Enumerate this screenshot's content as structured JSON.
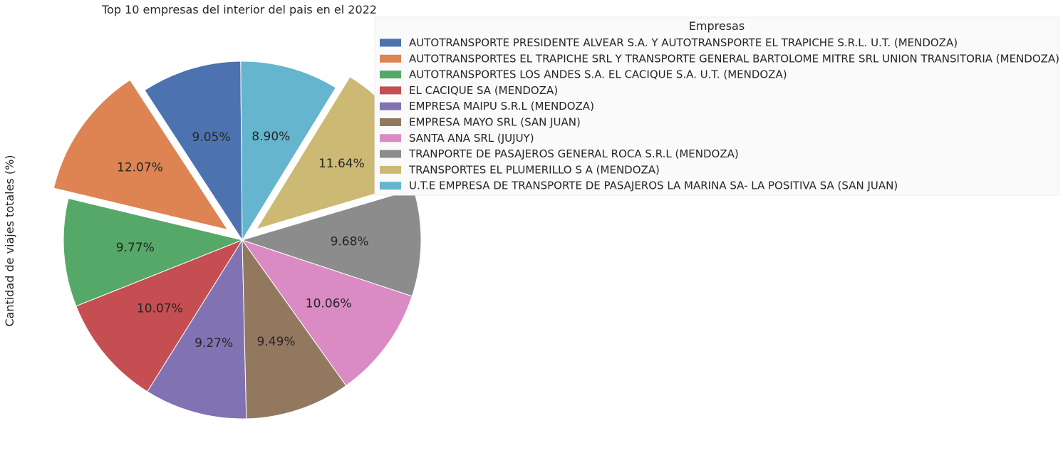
{
  "chart_data": {
    "type": "pie",
    "title": "Top 10 empresas del interior del pais en el 2022",
    "ylabel": "Cantidad de viajes totales (%)",
    "legend": {
      "title": "Empresas",
      "placement": "top-right"
    },
    "slices": [
      {
        "label": "AUTOTRANSPORTE PRESIDENTE ALVEAR S.A. Y AUTOTRANSPORTE EL TRAPICHE S.R.L. U.T. (MENDOZA)",
        "value": 9.05,
        "text": "9.05%",
        "color": "#4c72b0",
        "exploded": false
      },
      {
        "label": "AUTOTRANSPORTES EL TRAPICHE SRL Y TRANSPORTE GENERAL BARTOLOME MITRE SRL UNION TRANSITORIA (MENDOZA)",
        "value": 12.07,
        "text": "12.07%",
        "color": "#dd8452",
        "exploded": true
      },
      {
        "label": "AUTOTRANSPORTES LOS ANDES S.A. EL CACIQUE S.A. U.T. (MENDOZA)",
        "value": 9.77,
        "text": "9.77%",
        "color": "#55a868",
        "exploded": false
      },
      {
        "label": "EL CACIQUE SA (MENDOZA)",
        "value": 10.07,
        "text": "10.07%",
        "color": "#c44e52",
        "exploded": false
      },
      {
        "label": "EMPRESA MAIPU S.R.L (MENDOZA)",
        "value": 9.27,
        "text": "9.27%",
        "color": "#8172b3",
        "exploded": false
      },
      {
        "label": "EMPRESA MAYO SRL (SAN JUAN)",
        "value": 9.49,
        "text": "9.49%",
        "color": "#937860",
        "exploded": false
      },
      {
        "label": "SANTA ANA SRL (JUJUY)",
        "value": 10.06,
        "text": "10.06%",
        "color": "#da8bc3",
        "exploded": false
      },
      {
        "label": "TRANPORTE DE PASAJEROS GENERAL ROCA S.R.L (MENDOZA)",
        "value": 9.68,
        "text": "9.68%",
        "color": "#8c8c8c",
        "exploded": false
      },
      {
        "label": "TRANSPORTES EL PLUMERILLO S A (MENDOZA)",
        "value": 11.64,
        "text": "11.64%",
        "color": "#ccb974",
        "exploded": true
      },
      {
        "label": "U.T.E EMPRESA DE TRANSPORTE DE PASAJEROS LA MARINA SA- LA POSITIVA SA (SAN JUAN)",
        "value": 8.9,
        "text": "8.90%",
        "color": "#64b5cd",
        "exploded": false
      }
    ]
  }
}
